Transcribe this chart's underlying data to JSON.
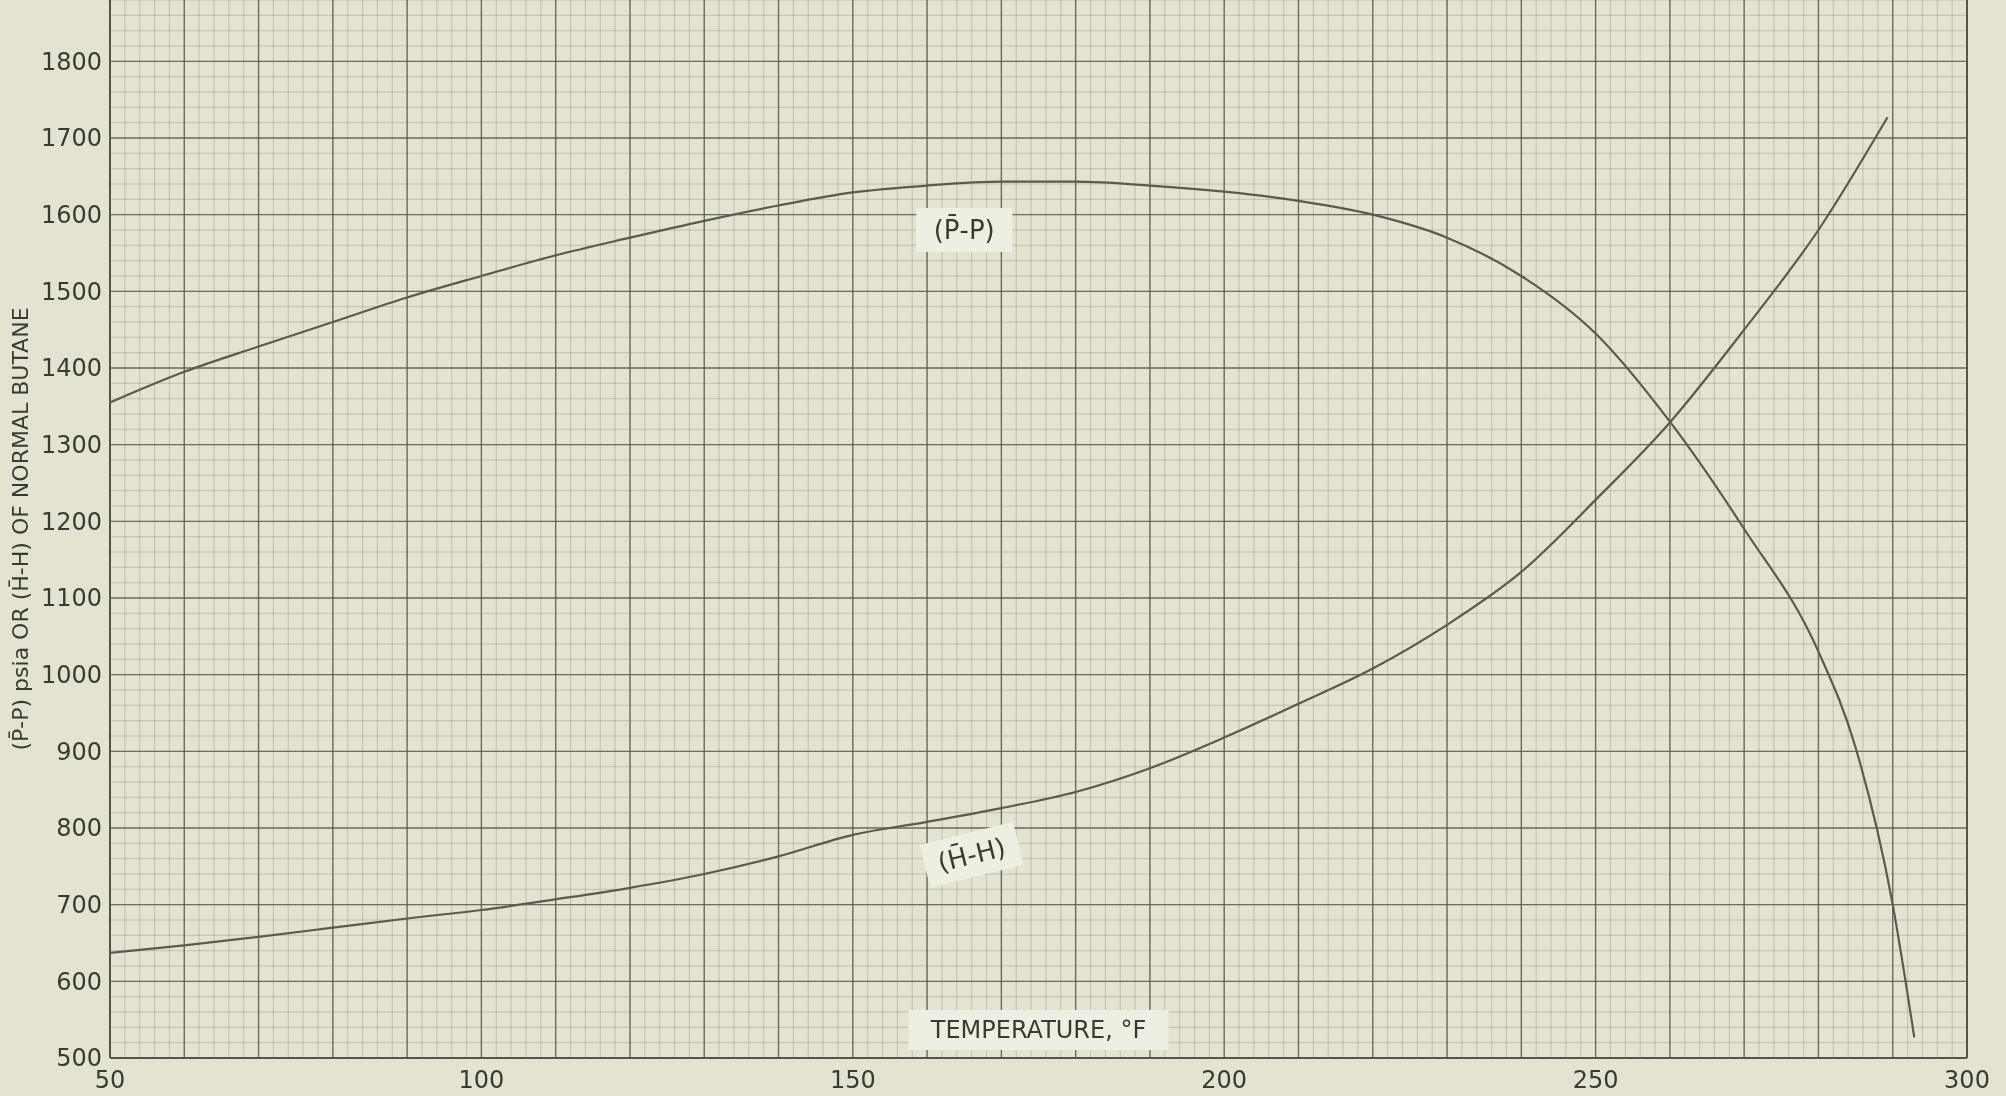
{
  "chart_data": {
    "type": "line",
    "xlabel": "TEMPERATURE, °F",
    "ylabel": "(P̄-P) psia OR (H̄-H) OF NORMAL BUTANE",
    "xlim": [
      50,
      300
    ],
    "ylim": [
      500,
      1880
    ],
    "xticks": [
      50,
      {
        "value": 60,
        "label": null
      },
      {
        "value": 70,
        "label": null
      },
      {
        "value": 80,
        "label": null
      },
      {
        "value": 90,
        "label": null
      },
      100,
      {
        "value": 110,
        "label": null
      },
      {
        "value": 120,
        "label": null
      },
      {
        "value": 130,
        "label": null
      },
      {
        "value": 140,
        "label": null
      },
      150,
      {
        "value": 160,
        "label": null
      },
      {
        "value": 170,
        "label": null
      },
      {
        "value": 180,
        "label": null
      },
      {
        "value": 190,
        "label": null
      },
      200,
      {
        "value": 210,
        "label": null
      },
      {
        "value": 220,
        "label": null
      },
      {
        "value": 230,
        "label": null
      },
      {
        "value": 240,
        "label": null
      },
      250,
      {
        "value": 260,
        "label": null
      },
      {
        "value": 270,
        "label": null
      },
      {
        "value": 280,
        "label": null
      },
      {
        "value": 290,
        "label": null
      },
      300
    ],
    "yticks": [
      500,
      600,
      700,
      800,
      900,
      1000,
      1100,
      1200,
      1300,
      1400,
      1500,
      1600,
      1700,
      1800
    ],
    "grid": true,
    "marker": "none",
    "line_style": "solid",
    "series": [
      {
        "name": "(P̄-P)",
        "color": "#5a5a50",
        "x": [
          50,
          60,
          70,
          80,
          90,
          100,
          110,
          120,
          130,
          140,
          150,
          160,
          170,
          180,
          190,
          200,
          210,
          220,
          230,
          240,
          250,
          260,
          270,
          280,
          285,
          290,
          292.9
        ],
        "values": [
          1355,
          1395,
          1428,
          1460,
          1492,
          1520,
          1547,
          1570,
          1592,
          1612,
          1629,
          1638,
          1643,
          1643,
          1638,
          1630,
          1618,
          1600,
          1570,
          1520,
          1445,
          1330,
          1190,
          1030,
          905,
          700,
          527
        ]
      },
      {
        "name": "(H̄-H)",
        "color": "#5a5a50",
        "x": [
          50,
          60,
          70,
          80,
          90,
          100,
          110,
          120,
          130,
          140,
          150,
          160,
          170,
          180,
          190,
          200,
          210,
          220,
          230,
          240,
          250,
          260,
          270,
          280,
          289.3
        ],
        "values": [
          637,
          647,
          658,
          670,
          682,
          693,
          707,
          722,
          740,
          763,
          791,
          808,
          826,
          847,
          878,
          918,
          962,
          1008,
          1065,
          1134,
          1228,
          1329,
          1450,
          1580,
          1727
        ]
      }
    ]
  }
}
